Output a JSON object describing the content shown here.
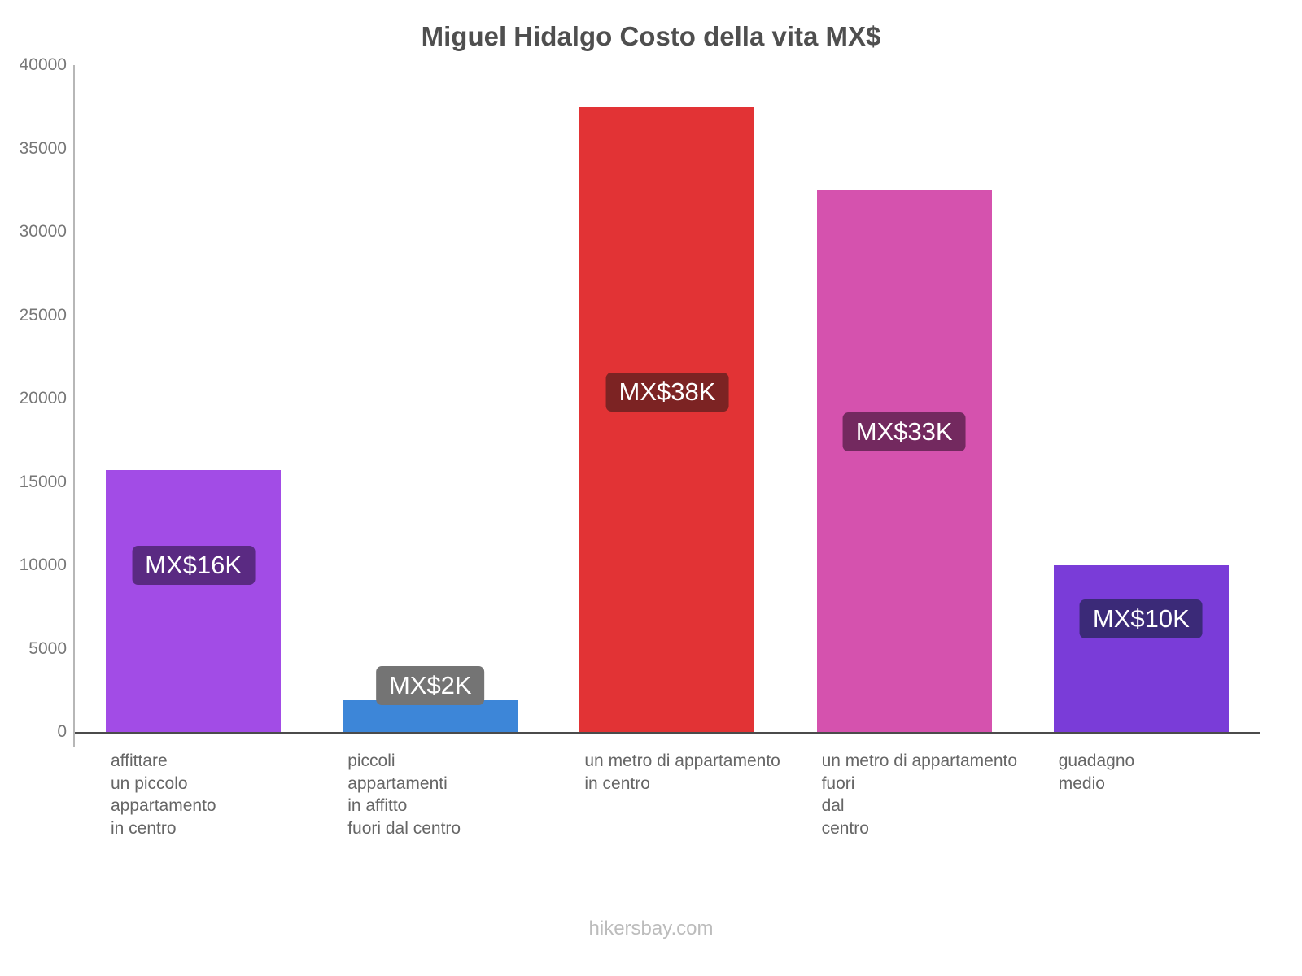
{
  "chart_data": {
    "type": "bar",
    "title": "Miguel Hidalgo Costo della vita MX$",
    "xlabel": "",
    "ylabel": "",
    "ylim": [
      0,
      40000
    ],
    "ytick_step": 5000,
    "grid": false,
    "legend": false,
    "categories": [
      [
        "affittare",
        "un piccolo",
        "appartamento",
        "in centro"
      ],
      [
        "piccoli",
        "appartamenti",
        "in affitto",
        "fuori dal centro"
      ],
      [
        "un metro di appartamento",
        "in centro"
      ],
      [
        "un metro di appartamento",
        "fuori",
        "dal",
        "centro"
      ],
      [
        "guadagno",
        "medio"
      ]
    ],
    "values": [
      15700,
      1900,
      37500,
      32500,
      10000
    ],
    "labels": [
      "MX$16K",
      "MX$2K",
      "MX$38K",
      "MX$33K",
      "MX$10K"
    ],
    "bar_colors": [
      "#a24ce6",
      "#3d86d8",
      "#e23335",
      "#d552ae",
      "#7a3cd8"
    ],
    "label_bg": [
      "#5a2a82",
      "#747474",
      "#7c2323",
      "#73295f",
      "#3b2a78"
    ],
    "label_center_values": [
      10000,
      2800,
      20400,
      18000,
      6800
    ]
  },
  "footer": {
    "text": "hikersbay.com"
  }
}
